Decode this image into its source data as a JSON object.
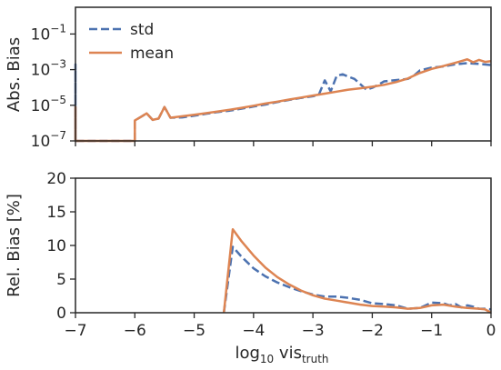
{
  "colors": {
    "std": "#4c72b0",
    "mean": "#dd8452",
    "axis": "#262626",
    "background": "#ffffff"
  },
  "chart_data": [
    {
      "type": "line",
      "title": "",
      "ylabel": "Abs. Bias",
      "xlabel": "",
      "x_scale": "linear",
      "y_scale": "log",
      "xlim": [
        -7,
        0
      ],
      "ylim_exponents": [
        -7,
        0.5
      ],
      "y_ticks": [
        {
          "base": "10",
          "exp": "−1",
          "value_exp": -1
        },
        {
          "base": "10",
          "exp": "−3",
          "value_exp": -3
        },
        {
          "base": "10",
          "exp": "−5",
          "value_exp": -5
        },
        {
          "base": "10",
          "exp": "−7",
          "value_exp": -7
        }
      ],
      "grid": false,
      "legend": {
        "position": "top-left",
        "entries": [
          {
            "label": "std",
            "style": "dashed",
            "color_key": "std"
          },
          {
            "label": "mean",
            "style": "solid",
            "color_key": "mean"
          }
        ]
      },
      "series": [
        {
          "name": "std",
          "style": "dashed",
          "color_key": "std",
          "points": [
            [
              -7.0,
              1e-07
            ],
            [
              -7.0,
              0.002
            ],
            [
              -7.0,
              1e-07
            ],
            [
              -6.0,
              1e-07
            ],
            [
              -6.0,
              1.4e-06
            ],
            [
              -5.9,
              2.2e-06
            ],
            [
              -5.8,
              3.5e-06
            ],
            [
              -5.7,
              1.5e-06
            ],
            [
              -5.6,
              1.8e-06
            ],
            [
              -5.5,
              8e-06
            ],
            [
              -5.4,
              2e-06
            ],
            [
              -5.2,
              2.1e-06
            ],
            [
              -5.0,
              2.6e-06
            ],
            [
              -4.8,
              3.3e-06
            ],
            [
              -4.6,
              4.2e-06
            ],
            [
              -4.4,
              5e-06
            ],
            [
              -4.2,
              6.5e-06
            ],
            [
              -4.0,
              8.5e-06
            ],
            [
              -3.8,
              1.1e-05
            ],
            [
              -3.6,
              1.5e-05
            ],
            [
              -3.4,
              2e-05
            ],
            [
              -3.2,
              2.6e-05
            ],
            [
              -3.0,
              3.2e-05
            ],
            [
              -2.9,
              4e-05
            ],
            [
              -2.8,
              0.00025
            ],
            [
              -2.7,
              6e-05
            ],
            [
              -2.6,
              0.00045
            ],
            [
              -2.5,
              0.00055
            ],
            [
              -2.4,
              0.0004
            ],
            [
              -2.3,
              0.0003
            ],
            [
              -2.2,
              0.00015
            ],
            [
              -2.1,
              7.5e-05
            ],
            [
              -2.0,
              9.5e-05
            ],
            [
              -1.9,
              0.00014
            ],
            [
              -1.8,
              0.00022
            ],
            [
              -1.6,
              0.00026
            ],
            [
              -1.4,
              0.0003
            ],
            [
              -1.3,
              0.00045
            ],
            [
              -1.2,
              0.0009
            ],
            [
              -1.0,
              0.0013
            ],
            [
              -0.8,
              0.0015
            ],
            [
              -0.6,
              0.002
            ],
            [
              -0.4,
              0.0023
            ],
            [
              -0.2,
              0.0021
            ],
            [
              0.0,
              0.0018
            ]
          ]
        },
        {
          "name": "mean",
          "style": "solid",
          "color_key": "mean",
          "points": [
            [
              -7.0,
              1e-07
            ],
            [
              -7.0,
              8e-06
            ],
            [
              -7.0,
              1e-07
            ],
            [
              -6.0,
              1e-07
            ],
            [
              -6.0,
              1.4e-06
            ],
            [
              -5.9,
              2.2e-06
            ],
            [
              -5.8,
              3.5e-06
            ],
            [
              -5.7,
              1.5e-06
            ],
            [
              -5.6,
              1.8e-06
            ],
            [
              -5.5,
              8e-06
            ],
            [
              -5.4,
              2e-06
            ],
            [
              -5.2,
              2.4e-06
            ],
            [
              -5.0,
              2.9e-06
            ],
            [
              -4.8,
              3.6e-06
            ],
            [
              -4.6,
              4.5e-06
            ],
            [
              -4.4,
              5.6e-06
            ],
            [
              -4.2,
              7.2e-06
            ],
            [
              -4.0,
              9.4e-06
            ],
            [
              -3.8,
              1.25e-05
            ],
            [
              -3.6,
              1.6e-05
            ],
            [
              -3.4,
              2.1e-05
            ],
            [
              -3.2,
              2.7e-05
            ],
            [
              -3.0,
              3.5e-05
            ],
            [
              -2.8,
              4.5e-05
            ],
            [
              -2.6,
              5.8e-05
            ],
            [
              -2.4,
              7.5e-05
            ],
            [
              -2.2,
              9e-05
            ],
            [
              -2.0,
              0.00011
            ],
            [
              -1.8,
              0.00014
            ],
            [
              -1.6,
              0.0002
            ],
            [
              -1.4,
              0.00032
            ],
            [
              -1.2,
              0.00065
            ],
            [
              -1.0,
              0.0011
            ],
            [
              -0.8,
              0.0016
            ],
            [
              -0.6,
              0.0024
            ],
            [
              -0.5,
              0.003
            ],
            [
              -0.4,
              0.0038
            ],
            [
              -0.3,
              0.0026
            ],
            [
              -0.2,
              0.0035
            ],
            [
              -0.1,
              0.0027
            ],
            [
              0.0,
              0.003
            ]
          ]
        }
      ]
    },
    {
      "type": "line",
      "title": "",
      "ylabel": "Rel. Bias [%]",
      "xlabel_base": "log",
      "xlabel_sub": "10",
      "xlabel_mid": " vis",
      "xlabel_sub2": "truth",
      "x_scale": "linear",
      "y_scale": "linear",
      "xlim": [
        -7,
        0
      ],
      "ylim": [
        0,
        20
      ],
      "x_ticks": [
        {
          "label": "−7",
          "value": -7
        },
        {
          "label": "−6",
          "value": -6
        },
        {
          "label": "−5",
          "value": -5
        },
        {
          "label": "−4",
          "value": -4
        },
        {
          "label": "−3",
          "value": -3
        },
        {
          "label": "−2",
          "value": -2
        },
        {
          "label": "−1",
          "value": -1
        },
        {
          "label": "0",
          "value": 0
        }
      ],
      "y_ticks": [
        {
          "label": "0",
          "value": 0
        },
        {
          "label": "5",
          "value": 5
        },
        {
          "label": "10",
          "value": 10
        },
        {
          "label": "15",
          "value": 15
        },
        {
          "label": "20",
          "value": 20
        }
      ],
      "grid": false,
      "series": [
        {
          "name": "std",
          "style": "dashed",
          "color_key": "std",
          "points": [
            [
              -4.5,
              0.0
            ],
            [
              -4.35,
              9.8
            ],
            [
              -4.2,
              8.3
            ],
            [
              -4.0,
              6.6
            ],
            [
              -3.8,
              5.4
            ],
            [
              -3.6,
              4.5
            ],
            [
              -3.4,
              3.8
            ],
            [
              -3.2,
              3.2
            ],
            [
              -3.0,
              2.7
            ],
            [
              -2.8,
              2.4
            ],
            [
              -2.6,
              2.4
            ],
            [
              -2.4,
              2.2
            ],
            [
              -2.2,
              1.9
            ],
            [
              -2.0,
              1.4
            ],
            [
              -1.8,
              1.3
            ],
            [
              -1.6,
              1.1
            ],
            [
              -1.4,
              0.6
            ],
            [
              -1.2,
              0.7
            ],
            [
              -1.0,
              1.5
            ],
            [
              -0.8,
              1.4
            ],
            [
              -0.7,
              1.1
            ],
            [
              -0.6,
              1.3
            ],
            [
              -0.5,
              0.8
            ],
            [
              -0.4,
              1.1
            ],
            [
              -0.3,
              0.9
            ],
            [
              -0.2,
              0.6
            ],
            [
              -0.1,
              0.6
            ],
            [
              0.0,
              0.5
            ]
          ]
        },
        {
          "name": "mean",
          "style": "solid",
          "color_key": "mean",
          "points": [
            [
              -4.5,
              0.0
            ],
            [
              -4.35,
              12.4
            ],
            [
              -4.2,
              10.6
            ],
            [
              -4.0,
              8.5
            ],
            [
              -3.8,
              6.7
            ],
            [
              -3.6,
              5.3
            ],
            [
              -3.4,
              4.2
            ],
            [
              -3.2,
              3.3
            ],
            [
              -3.0,
              2.6
            ],
            [
              -2.8,
              2.1
            ],
            [
              -2.6,
              1.8
            ],
            [
              -2.4,
              1.5
            ],
            [
              -2.2,
              1.2
            ],
            [
              -2.0,
              1.0
            ],
            [
              -1.8,
              0.9
            ],
            [
              -1.6,
              0.8
            ],
            [
              -1.4,
              0.6
            ],
            [
              -1.2,
              0.7
            ],
            [
              -1.0,
              1.1
            ],
            [
              -0.8,
              1.2
            ],
            [
              -0.6,
              0.9
            ],
            [
              -0.4,
              0.7
            ],
            [
              -0.2,
              0.6
            ],
            [
              -0.1,
              0.5
            ],
            [
              0.0,
              0.0
            ]
          ]
        }
      ]
    }
  ]
}
